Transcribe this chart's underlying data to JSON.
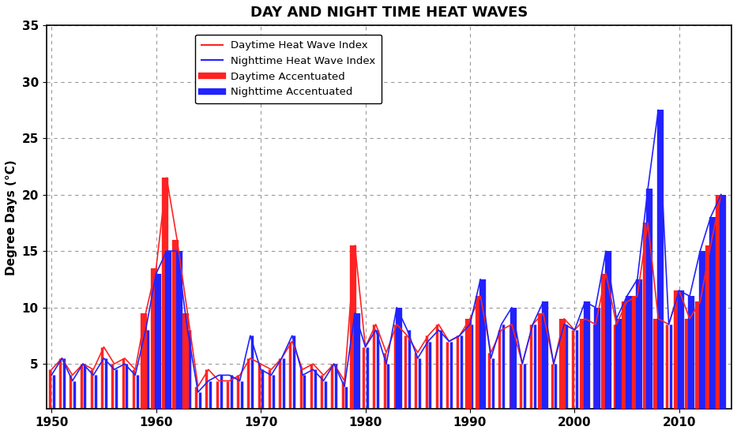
{
  "title": "DAY AND NIGHT TIME HEAT WAVES",
  "ylabel": "Degree Days (°C)",
  "xlim": [
    1949.5,
    2015
  ],
  "ylim": [
    1,
    35
  ],
  "yticks": [
    5,
    10,
    15,
    20,
    25,
    30,
    35
  ],
  "xticks": [
    1950,
    1960,
    1970,
    1980,
    1990,
    2000,
    2010
  ],
  "background_color": "#ffffff",
  "grid_color": "#888888",
  "title_fontsize": 13,
  "axis_fontsize": 11,
  "tick_fontsize": 11,
  "years": [
    1950,
    1951,
    1952,
    1953,
    1954,
    1955,
    1956,
    1957,
    1958,
    1959,
    1960,
    1961,
    1962,
    1963,
    1964,
    1965,
    1966,
    1967,
    1968,
    1969,
    1970,
    1971,
    1972,
    1973,
    1974,
    1975,
    1976,
    1977,
    1978,
    1979,
    1980,
    1981,
    1982,
    1983,
    1984,
    1985,
    1986,
    1987,
    1988,
    1989,
    1990,
    1991,
    1992,
    1993,
    1994,
    1995,
    1996,
    1997,
    1998,
    1999,
    2000,
    2001,
    2002,
    2003,
    2004,
    2005,
    2006,
    2007,
    2008,
    2009,
    2010,
    2011,
    2012,
    2013,
    2014
  ],
  "daytime": [
    4.5,
    5.5,
    4.0,
    5.0,
    4.5,
    6.5,
    5.0,
    5.5,
    4.5,
    9.5,
    13.5,
    21.5,
    16.0,
    9.5,
    3.0,
    4.5,
    3.5,
    3.5,
    4.0,
    5.5,
    5.0,
    4.5,
    5.5,
    7.0,
    4.5,
    5.0,
    4.0,
    5.0,
    3.5,
    15.5,
    6.5,
    8.5,
    6.0,
    8.5,
    7.5,
    6.0,
    7.5,
    8.5,
    7.0,
    7.5,
    9.0,
    11.0,
    6.0,
    8.0,
    8.5,
    5.0,
    8.5,
    9.5,
    5.0,
    9.0,
    8.0,
    9.0,
    8.5,
    13.0,
    8.5,
    10.5,
    11.0,
    17.5,
    9.0,
    8.5,
    11.5,
    9.0,
    10.5,
    15.5,
    20.0
  ],
  "nighttime": [
    4.0,
    5.5,
    3.5,
    5.0,
    4.0,
    5.5,
    4.5,
    5.0,
    4.0,
    8.0,
    13.0,
    15.0,
    15.0,
    8.0,
    2.5,
    3.5,
    4.0,
    4.0,
    3.5,
    7.5,
    4.5,
    4.0,
    5.5,
    7.5,
    4.0,
    4.5,
    3.5,
    5.0,
    3.0,
    9.5,
    6.5,
    8.0,
    5.0,
    10.0,
    8.0,
    5.5,
    7.0,
    8.0,
    7.0,
    7.5,
    8.5,
    12.5,
    5.5,
    8.5,
    10.0,
    5.0,
    8.5,
    10.5,
    5.0,
    8.5,
    8.0,
    10.5,
    10.0,
    15.0,
    9.0,
    11.0,
    12.5,
    20.5,
    27.5,
    8.5,
    11.5,
    11.0,
    15.0,
    18.0,
    20.0
  ],
  "daytime_color": "#ff2222",
  "nighttime_color": "#2222ff",
  "accentuated_threshold_day": 9.0,
  "accentuated_threshold_night": 9.0,
  "legend_labels": [
    "Daytime Heat Wave Index",
    "Nighttime Heat Wave Index",
    "Daytime Accentuated",
    "Nighttime Accentuated"
  ]
}
